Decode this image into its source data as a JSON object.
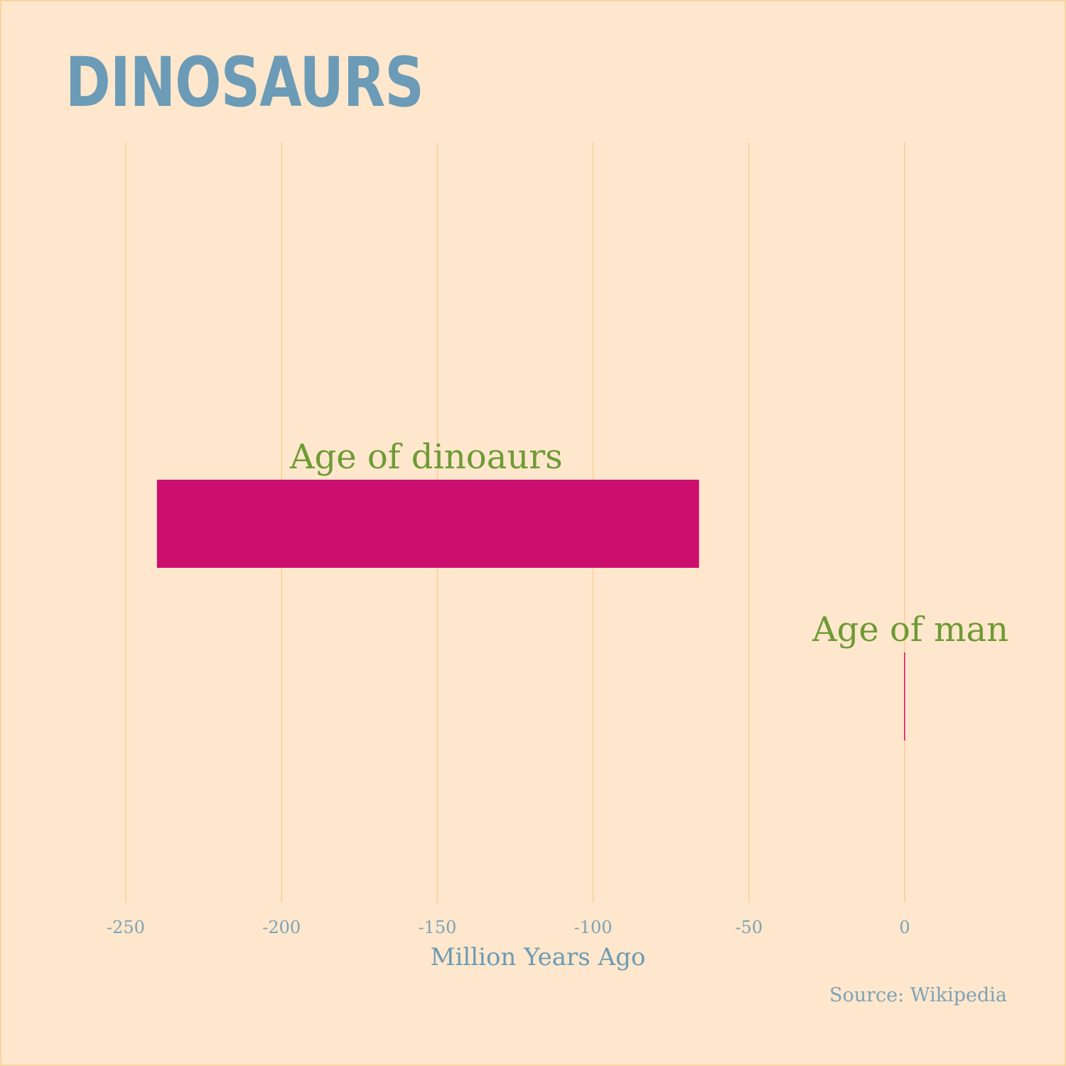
{
  "title": "DINOSAURS",
  "source": "Source: Wikipedia",
  "colors": {
    "background": "#fee7cc",
    "bar": "#cc0e6e",
    "label": "#6e9a35",
    "title": "#6b9bb6",
    "grid": "#f9cd98"
  },
  "chart_data": {
    "type": "bar",
    "orientation": "horizontal",
    "title": "DINOSAURS",
    "xlabel": "Million Years Ago",
    "ylabel": "",
    "xlim": [
      -250,
      0
    ],
    "x_ticks": [
      -250,
      -200,
      -150,
      -100,
      -50,
      0
    ],
    "grid": "vertical",
    "bars": [
      {
        "label": "Age of dinoaurs",
        "start": -240,
        "end": -66
      },
      {
        "label": "Age of man",
        "start": -0.2,
        "end": 0
      }
    ]
  }
}
